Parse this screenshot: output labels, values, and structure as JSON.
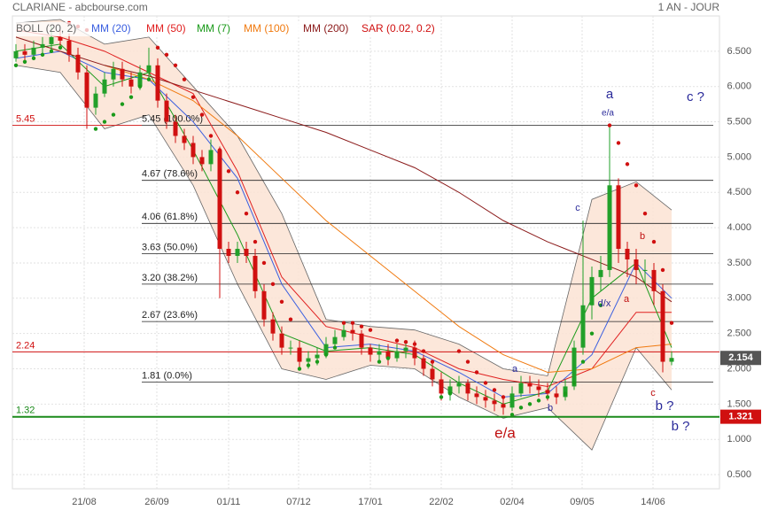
{
  "chart_data": {
    "type": "candlestick",
    "title": "CLARIANE - abcbourse.com",
    "period": "1 AN - JOUR",
    "x": [
      0,
      1,
      2,
      3,
      4,
      5,
      6,
      7,
      8,
      9,
      10,
      11,
      12,
      13,
      14,
      15,
      16,
      17,
      18,
      19,
      20,
      21,
      22,
      23,
      24,
      25,
      26,
      27,
      28,
      29,
      30,
      31,
      32,
      33,
      34,
      35,
      36,
      37,
      38,
      39,
      40,
      41,
      42,
      43,
      44,
      45,
      46,
      47,
      48,
      49,
      50,
      51,
      52,
      53,
      54,
      55,
      56,
      57,
      58,
      59,
      60,
      61,
      62,
      63,
      64,
      65,
      66,
      67,
      68,
      69,
      70,
      71,
      72,
      73,
      74
    ],
    "xlim": [
      -0.4,
      79.4
    ],
    "xticks": [
      {
        "value": 7.7,
        "label": "21/08"
      },
      {
        "value": 15.9,
        "label": "26/09"
      },
      {
        "value": 24,
        "label": "01/11"
      },
      {
        "value": 31.9,
        "label": "07/12"
      },
      {
        "value": 40,
        "label": "17/01"
      },
      {
        "value": 48,
        "label": "22/02"
      },
      {
        "value": 56,
        "label": "02/04"
      },
      {
        "value": 63.9,
        "label": "09/05"
      },
      {
        "value": 71.9,
        "label": "14/06"
      }
    ],
    "ylim": [
      0.3,
      7.0
    ],
    "yticks": [
      {
        "value": 0.5,
        "label": "0.500"
      },
      {
        "value": 1,
        "label": "1.000"
      },
      {
        "value": 1.5,
        "label": "1.500"
      },
      {
        "value": 2,
        "label": "2.000"
      },
      {
        "value": 2.5,
        "label": "2.500"
      },
      {
        "value": 3,
        "label": "3.000"
      },
      {
        "value": 3.5,
        "label": "3.500"
      },
      {
        "value": 4,
        "label": "4.000"
      },
      {
        "value": 4.5,
        "label": "4.500"
      },
      {
        "value": 5,
        "label": "5.000"
      },
      {
        "value": 5.5,
        "label": "5.500"
      },
      {
        "value": 6,
        "label": "6.000"
      },
      {
        "value": 6.5,
        "label": "6.500"
      }
    ],
    "grid": true,
    "up_color": "#22a02a",
    "down_color": "#d01010",
    "open": [
      6.4,
      6.5,
      6.45,
      6.55,
      6.6,
      6.7,
      6.65,
      6.45,
      6.2,
      5.7,
      5.9,
      6.1,
      6.25,
      6.1,
      6.0,
      6.2,
      6.3,
      5.8,
      5.5,
      5.3,
      5.2,
      5.0,
      4.9,
      5.1,
      3.7,
      3.6,
      3.7,
      3.6,
      3.1,
      2.7,
      2.5,
      2.3,
      2.3,
      2.1,
      2.15,
      2.2,
      2.35,
      2.45,
      2.55,
      2.5,
      2.3,
      2.2,
      2.25,
      2.15,
      2.25,
      2.3,
      2.15,
      2.0,
      1.85,
      1.65,
      1.75,
      1.8,
      1.65,
      1.6,
      1.55,
      1.5,
      1.45,
      1.65,
      1.8,
      1.75,
      1.7,
      1.65,
      1.6,
      1.75,
      2.3,
      2.9,
      3.3,
      3.4,
      4.6,
      3.7,
      3.55,
      3.4,
      3.4,
      3.1,
      2.1
    ],
    "high": [
      6.6,
      6.6,
      6.65,
      6.7,
      6.85,
      6.8,
      6.75,
      6.55,
      6.3,
      6.0,
      6.2,
      6.35,
      6.35,
      6.2,
      6.3,
      6.55,
      6.4,
      5.9,
      5.6,
      5.4,
      5.3,
      5.1,
      5.25,
      5.15,
      3.8,
      3.8,
      3.8,
      3.7,
      3.2,
      2.8,
      2.6,
      2.4,
      2.4,
      2.25,
      2.3,
      2.45,
      2.55,
      2.65,
      2.65,
      2.55,
      2.35,
      2.35,
      2.35,
      2.35,
      2.4,
      2.4,
      2.2,
      2.1,
      1.95,
      1.85,
      1.9,
      1.85,
      1.75,
      1.7,
      1.65,
      1.6,
      1.75,
      1.9,
      1.9,
      1.85,
      1.8,
      1.75,
      1.85,
      2.4,
      4.1,
      3.45,
      3.6,
      5.45,
      4.7,
      3.8,
      3.7,
      3.55,
      3.5,
      3.2,
      2.25
    ],
    "low": [
      6.35,
      6.35,
      6.4,
      6.45,
      6.5,
      6.55,
      6.35,
      6.1,
      5.4,
      5.6,
      5.85,
      6.0,
      6.0,
      5.9,
      5.95,
      6.1,
      5.7,
      5.4,
      5.2,
      5.1,
      4.9,
      4.8,
      4.8,
      3.0,
      3.5,
      3.5,
      3.5,
      3.0,
      2.6,
      2.4,
      2.2,
      2.2,
      2.0,
      2.0,
      2.05,
      2.15,
      2.3,
      2.4,
      2.4,
      2.2,
      2.1,
      2.1,
      2.05,
      2.1,
      2.15,
      2.05,
      1.9,
      1.75,
      1.55,
      1.55,
      1.65,
      1.55,
      1.5,
      1.45,
      1.4,
      1.35,
      1.4,
      1.6,
      1.65,
      1.6,
      1.55,
      1.5,
      1.55,
      1.7,
      2.2,
      2.7,
      3.1,
      3.3,
      3.5,
      3.3,
      3.2,
      3.2,
      2.9,
      1.95,
      2.05
    ],
    "close": [
      6.5,
      6.45,
      6.55,
      6.6,
      6.7,
      6.65,
      6.45,
      6.2,
      5.7,
      5.9,
      6.1,
      6.25,
      6.1,
      6.0,
      6.2,
      6.3,
      5.8,
      5.5,
      5.3,
      5.2,
      5.0,
      4.9,
      5.1,
      3.7,
      3.6,
      3.7,
      3.6,
      3.1,
      2.7,
      2.5,
      2.3,
      2.3,
      2.1,
      2.15,
      2.2,
      2.35,
      2.45,
      2.55,
      2.5,
      2.3,
      2.2,
      2.25,
      2.15,
      2.25,
      2.3,
      2.15,
      2.0,
      1.85,
      1.65,
      1.75,
      1.8,
      1.65,
      1.6,
      1.55,
      1.5,
      1.45,
      1.65,
      1.8,
      1.75,
      1.7,
      1.65,
      1.6,
      1.75,
      2.3,
      2.9,
      3.3,
      3.4,
      4.6,
      3.7,
      3.55,
      3.4,
      3.4,
      3.1,
      2.1,
      2.154
    ],
    "bollinger": {
      "name": "BOLL (20, 2)",
      "color": "#666666",
      "fill": "#fbe3d4",
      "x": [
        0,
        5,
        10,
        15,
        20,
        25,
        30,
        35,
        40,
        45,
        50,
        55,
        60,
        65,
        70,
        74
      ],
      "upper": [
        6.9,
        6.95,
        6.6,
        6.7,
        6.0,
        5.3,
        4.2,
        2.7,
        2.6,
        2.55,
        2.35,
        2.0,
        1.9,
        4.4,
        4.65,
        4.25
      ],
      "lower": [
        6.3,
        6.2,
        5.4,
        5.6,
        4.6,
        3.2,
        2.0,
        1.85,
        2.05,
        2.0,
        1.6,
        1.3,
        1.45,
        0.85,
        2.3,
        1.7
      ]
    },
    "series": [
      {
        "name": "MM (20)",
        "color": "#3a5fe0",
        "x": [
          0,
          5,
          10,
          15,
          20,
          25,
          30,
          35,
          40,
          45,
          50,
          55,
          60,
          65,
          70,
          74
        ],
        "values": [
          6.4,
          6.5,
          6.2,
          6.1,
          5.5,
          4.7,
          3.2,
          2.3,
          2.35,
          2.25,
          1.95,
          1.6,
          1.65,
          2.2,
          3.5,
          3.0
        ]
      },
      {
        "name": "MM (50)",
        "color": "#e02020",
        "x": [
          0,
          5,
          10,
          15,
          20,
          25,
          30,
          35,
          40,
          45,
          50,
          55,
          60,
          65,
          70,
          74
        ],
        "values": [
          6.8,
          6.7,
          6.5,
          6.2,
          5.9,
          4.8,
          3.3,
          2.6,
          2.45,
          2.3,
          2.0,
          1.85,
          1.75,
          2.0,
          2.8,
          2.8
        ]
      },
      {
        "name": "MM (7)",
        "color": "#1a9a1a",
        "x": [
          0,
          5,
          10,
          15,
          20,
          25,
          30,
          35,
          40,
          45,
          50,
          55,
          60,
          65,
          70,
          74
        ],
        "values": [
          6.5,
          6.6,
          6.0,
          6.2,
          5.1,
          3.9,
          2.5,
          2.25,
          2.3,
          2.2,
          1.8,
          1.5,
          1.68,
          3.0,
          3.5,
          2.3
        ]
      },
      {
        "name": "MM (100)",
        "color": "#f07a10",
        "x": [
          0,
          5,
          10,
          15,
          20,
          25,
          30,
          35,
          40,
          45,
          50,
          55,
          60,
          65,
          70,
          74
        ],
        "values": [
          null,
          null,
          6.3,
          6.1,
          5.8,
          5.3,
          4.7,
          4.1,
          3.6,
          3.1,
          2.6,
          2.2,
          1.95,
          2.0,
          2.3,
          2.35
        ]
      },
      {
        "name": "MM (200)",
        "color": "#8b1a1a",
        "x": [
          0,
          5,
          10,
          15,
          20,
          25,
          30,
          35,
          40,
          45,
          50,
          55,
          60,
          65,
          70,
          74
        ],
        "values": [
          6.7,
          6.5,
          6.3,
          6.15,
          5.95,
          5.75,
          5.55,
          5.35,
          5.1,
          4.85,
          4.5,
          4.1,
          3.8,
          3.55,
          3.3,
          2.95
        ]
      }
    ],
    "sar": {
      "name": "SAR (0.02, 0.2)",
      "color_above": "#d01010",
      "color_below": "#1a9a1a",
      "values": [
        6.3,
        6.35,
        6.4,
        6.45,
        6.5,
        6.55,
        6.9,
        6.85,
        6.8,
        5.4,
        5.5,
        5.6,
        5.75,
        5.85,
        6.0,
        6.1,
        6.55,
        6.45,
        6.3,
        6.1,
        5.85,
        5.6,
        5.3,
        5.1,
        4.8,
        4.5,
        4.2,
        3.8,
        3.5,
        3.2,
        2.95,
        2.7,
        2.0,
        2.05,
        2.1,
        2.2,
        2.3,
        2.65,
        2.65,
        2.6,
        2.55,
        2.1,
        2.15,
        2.4,
        2.38,
        2.35,
        2.25,
        2.1,
        1.6,
        1.65,
        2.25,
        2.1,
        1.95,
        1.8,
        1.7,
        1.6,
        1.35,
        1.45,
        1.5,
        1.55,
        1.6,
        1.62,
        1.65,
        1.8,
        2.1,
        2.5,
        2.9,
        5.45,
        5.2,
        4.9,
        4.6,
        4.2,
        3.8,
        3.4,
        2.65
      ]
    },
    "fibonacci": [
      {
        "value": 5.45,
        "label": "5.45 (100.0%)"
      },
      {
        "value": 4.67,
        "label": "4.67 (78.6%)"
      },
      {
        "value": 4.06,
        "label": "4.06 (61.8%)"
      },
      {
        "value": 3.63,
        "label": "3.63 (50.0%)"
      },
      {
        "value": 3.2,
        "label": "3.20 (38.2%)"
      },
      {
        "value": 2.67,
        "label": "2.67 (23.6%)"
      },
      {
        "value": 1.81,
        "label": "1.81 (0.0%)"
      }
    ],
    "levels": [
      {
        "value": 5.45,
        "label": "5.45",
        "color": "#d01010"
      },
      {
        "value": 2.24,
        "label": "2.24",
        "color": "#d01010"
      },
      {
        "value": 1.32,
        "label": "1.32",
        "color": "#1a8a1a"
      }
    ],
    "price_labels": [
      {
        "value": 2.154,
        "label": "2.154",
        "color": "#555555"
      },
      {
        "value": 1.321,
        "label": "1.321",
        "color": "#d01010"
      }
    ],
    "annotations": [
      {
        "text": "a",
        "color": "#2a2a9a"
      },
      {
        "text": "e/a",
        "color": "#2a2a9a"
      },
      {
        "text": "c ?",
        "color": "#2a2a9a"
      },
      {
        "text": "c",
        "color": "#2a2a9a"
      },
      {
        "text": "b",
        "color": "#c01010"
      },
      {
        "text": "d/x",
        "color": "#2a2a9a"
      },
      {
        "text": "a",
        "color": "#c01010"
      },
      {
        "text": "a",
        "color": "#2a2a9a"
      },
      {
        "text": "b",
        "color": "#2a2a9a"
      },
      {
        "text": "c",
        "color": "#c01010"
      },
      {
        "text": "b ?",
        "color": "#2a2a9a"
      },
      {
        "text": "b ?",
        "color": "#2a2a9a"
      },
      {
        "text": "e/a",
        "color": "#c01010"
      }
    ]
  }
}
